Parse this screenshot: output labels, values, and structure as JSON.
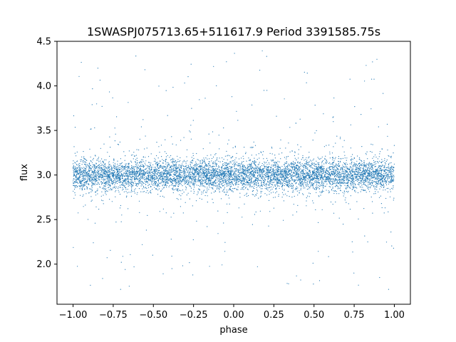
{
  "chart_data": {
    "type": "scatter",
    "title": "1SWASPJ075713.65+511617.9 Period 3391585.75s",
    "xlabel": "phase",
    "ylabel": "flux",
    "xlim": [
      -1.1,
      1.1
    ],
    "ylim": [
      1.55,
      4.5
    ],
    "xticks": [
      -1.0,
      -0.75,
      -0.5,
      -0.25,
      0.0,
      0.25,
      0.5,
      0.75,
      1.0
    ],
    "xtick_labels": [
      "−1.00",
      "−0.75",
      "−0.50",
      "−0.25",
      "0.00",
      "0.25",
      "0.50",
      "0.75",
      "1.00"
    ],
    "yticks": [
      2.0,
      2.5,
      3.0,
      3.5,
      4.0,
      4.5
    ],
    "ytick_labels": [
      "2.0",
      "2.5",
      "3.0",
      "3.5",
      "4.0",
      "4.5"
    ],
    "grid": false,
    "series": [
      {
        "marker_color": "#1f77b4",
        "x_range": [
          -1.0,
          1.0
        ],
        "y_range": [
          1.7,
          4.4
        ],
        "core_band": [
          2.6,
          3.45
        ],
        "center": 3.0
      }
    ]
  }
}
